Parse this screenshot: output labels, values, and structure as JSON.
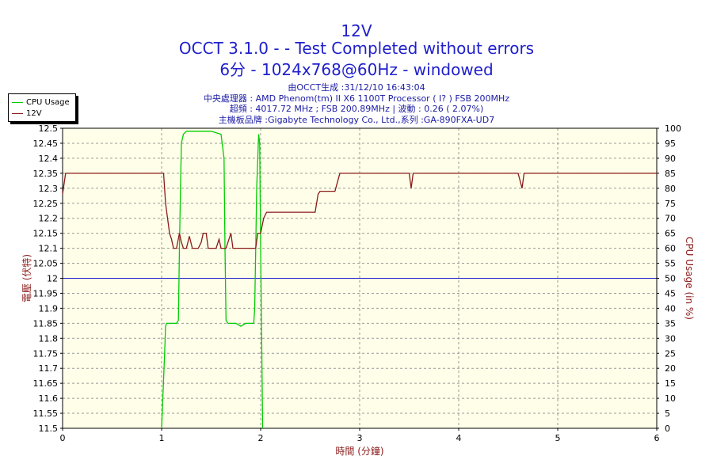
{
  "header": {
    "title": "12V",
    "line2": "OCCT 3.1.0 -  - Test Completed without errors",
    "line3": "6分 - 1024x768@60Hz - windowed"
  },
  "info": {
    "line1": "由OCCT生成 :31/12/10 16:43:04",
    "line2": "中央處理器 : AMD Phenom(tm) II X6 1100T Processor (  I? ) FSB 200MHz",
    "line3": "超頻 : 4017.72 MHz ; FSB 200.89MHz | 波動 : 0.26 ( 2.07%)",
    "line4": "主機板品牌 :Gigabyte Technology Co., Ltd.,系列 :GA-890FXA-UD7"
  },
  "colors": {
    "cpu": "#00cc00",
    "v12": "#8b1a1a",
    "reference": "#1a1acc",
    "plot_bg": "#ffffe9",
    "grid": "#999999",
    "title": "#1f1fcc",
    "axis_label": "#8b1a1a"
  },
  "chart_data": {
    "type": "line",
    "xlabel": "時間 (分鐘)",
    "ylabel_left": "電壓 (伏特)",
    "ylabel_right": "CPU Usage (in %)",
    "xlim": [
      0,
      6
    ],
    "ylim_left": [
      11.5,
      12.5
    ],
    "ylim_right": [
      0,
      100
    ],
    "grid": true,
    "legend_position": "top-left",
    "x_ticks": [
      "0",
      "1",
      "2",
      "3",
      "4",
      "5",
      "6"
    ],
    "y_ticks_left": [
      "12.5",
      "12.45",
      "12.4",
      "12.35",
      "12.3",
      "12.25",
      "12.2",
      "12.15",
      "12.1",
      "12.05",
      "12",
      "11.95",
      "11.9",
      "11.85",
      "11.8",
      "11.75",
      "11.7",
      "11.65",
      "11.6",
      "11.55",
      "11.5"
    ],
    "y_ticks_right": [
      "100",
      "95",
      "90",
      "85",
      "80",
      "75",
      "70",
      "65",
      "60",
      "55",
      "50",
      "45",
      "40",
      "35",
      "30",
      "25",
      "20",
      "15",
      "10",
      "5",
      "0"
    ],
    "reference_line": 12.0,
    "series": [
      {
        "name": "CPU Usage",
        "axis": "right",
        "points": [
          [
            1.0,
            0
          ],
          [
            1.03,
            25
          ],
          [
            1.04,
            34
          ],
          [
            1.05,
            35
          ],
          [
            1.15,
            35
          ],
          [
            1.17,
            36
          ],
          [
            1.18,
            60
          ],
          [
            1.19,
            80
          ],
          [
            1.2,
            95
          ],
          [
            1.22,
            98
          ],
          [
            1.25,
            99
          ],
          [
            1.4,
            99
          ],
          [
            1.5,
            99
          ],
          [
            1.6,
            98
          ],
          [
            1.63,
            90
          ],
          [
            1.64,
            60
          ],
          [
            1.65,
            36
          ],
          [
            1.67,
            35
          ],
          [
            1.75,
            35
          ],
          [
            1.8,
            34
          ],
          [
            1.85,
            35
          ],
          [
            1.93,
            35
          ],
          [
            1.94,
            40
          ],
          [
            1.95,
            60
          ],
          [
            1.96,
            80
          ],
          [
            1.98,
            98
          ],
          [
            1.99,
            95
          ],
          [
            2.0,
            60
          ],
          [
            2.01,
            30
          ],
          [
            2.02,
            0
          ]
        ]
      },
      {
        "name": "12V",
        "axis": "left",
        "points": [
          [
            0.0,
            12.28
          ],
          [
            0.03,
            12.35
          ],
          [
            0.5,
            12.35
          ],
          [
            1.02,
            12.35
          ],
          [
            1.04,
            12.25
          ],
          [
            1.06,
            12.2
          ],
          [
            1.08,
            12.15
          ],
          [
            1.1,
            12.13
          ],
          [
            1.12,
            12.1
          ],
          [
            1.15,
            12.1
          ],
          [
            1.18,
            12.15
          ],
          [
            1.2,
            12.12
          ],
          [
            1.22,
            12.1
          ],
          [
            1.25,
            12.1
          ],
          [
            1.28,
            12.14
          ],
          [
            1.31,
            12.1
          ],
          [
            1.34,
            12.1
          ],
          [
            1.37,
            12.1
          ],
          [
            1.4,
            12.12
          ],
          [
            1.42,
            12.15
          ],
          [
            1.45,
            12.15
          ],
          [
            1.47,
            12.1
          ],
          [
            1.5,
            12.1
          ],
          [
            1.55,
            12.1
          ],
          [
            1.58,
            12.13
          ],
          [
            1.6,
            12.1
          ],
          [
            1.65,
            12.1
          ],
          [
            1.68,
            12.13
          ],
          [
            1.7,
            12.15
          ],
          [
            1.72,
            12.1
          ],
          [
            1.8,
            12.1
          ],
          [
            1.88,
            12.1
          ],
          [
            1.95,
            12.1
          ],
          [
            1.97,
            12.15
          ],
          [
            2.0,
            12.15
          ],
          [
            2.03,
            12.2
          ],
          [
            2.06,
            12.22
          ],
          [
            2.2,
            12.22
          ],
          [
            2.4,
            12.22
          ],
          [
            2.55,
            12.22
          ],
          [
            2.58,
            12.28
          ],
          [
            2.6,
            12.29
          ],
          [
            2.75,
            12.29
          ],
          [
            2.8,
            12.35
          ],
          [
            3.0,
            12.35
          ],
          [
            3.5,
            12.35
          ],
          [
            3.52,
            12.3
          ],
          [
            3.54,
            12.35
          ],
          [
            4.0,
            12.35
          ],
          [
            4.6,
            12.35
          ],
          [
            4.64,
            12.3
          ],
          [
            4.66,
            12.35
          ],
          [
            5.0,
            12.35
          ],
          [
            6.0,
            12.35
          ]
        ]
      }
    ]
  }
}
